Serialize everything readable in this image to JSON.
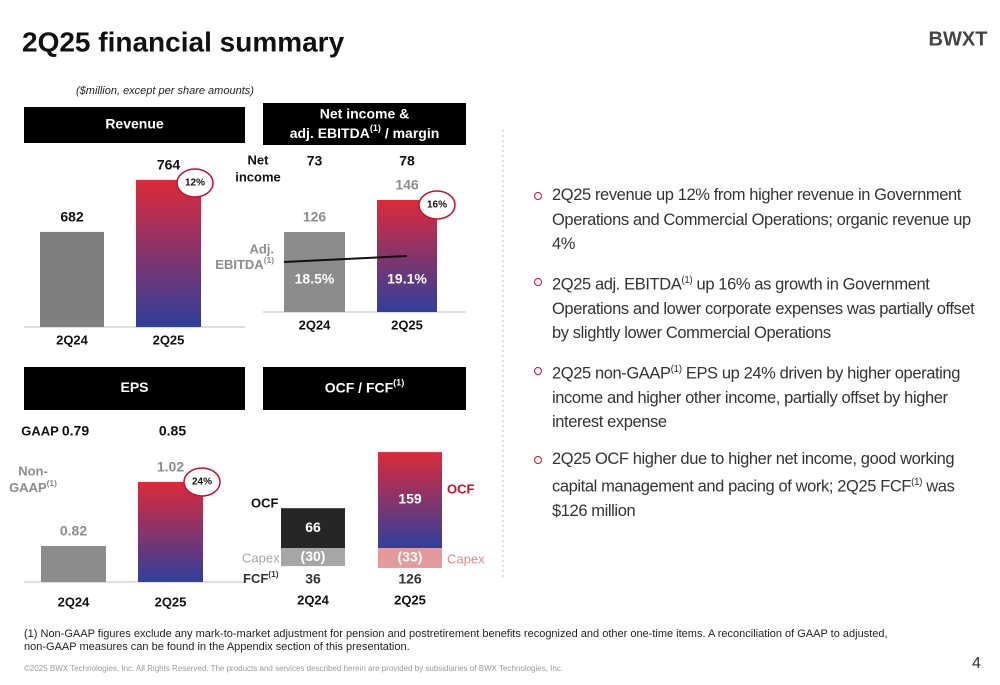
{
  "title": "2Q25 financial summary",
  "logo": "BWXT",
  "units_note": "($million, except per share amounts)",
  "chart_data": [
    {
      "type": "bar",
      "title": "Revenue",
      "categories": [
        "2Q24",
        "2Q25"
      ],
      "values": [
        682,
        764
      ],
      "colors": [
        "#7f7f7f",
        [
          "#dc2a3a",
          "#2f3f9c"
        ]
      ],
      "ylim": [
        532,
        827
      ],
      "growth": "12%"
    },
    {
      "type": "bar",
      "title": "Net income &",
      "subtitle": [
        [
          "adj. EBITDA",
          {
            "sup": "(1)"
          },
          " / margin"
        ]
      ],
      "categories": [
        "2Q24",
        "2Q25"
      ],
      "values": [
        126,
        146
      ],
      "colors": [
        "#8c8c8c",
        [
          "#dc2a3a",
          "#2f3f9c"
        ]
      ],
      "ylim": [
        76,
        183.5
      ],
      "growth": "16%",
      "net_income_label": [
        "Net",
        "income"
      ],
      "net_income": [
        73,
        78
      ],
      "ebitda_label": [
        "Adj.",
        [
          "EBITDA",
          {
            "sup": "(1)"
          }
        ]
      ],
      "margin": [
        18.5,
        19.1
      ],
      "margin_labels": [
        "18.5%",
        "19.1%"
      ],
      "y2lim": [
        13.5,
        30.7
      ],
      "line_color": "#111111"
    },
    {
      "type": "bar",
      "title": "EPS",
      "categories": [
        "2Q24",
        "2Q25"
      ],
      "values": [
        0.82,
        1.02
      ],
      "colors": [
        "#8c8c8c",
        [
          "#dc2a3a",
          "#2f3f9c"
        ]
      ],
      "ylim": [
        0.7075,
        1.151
      ],
      "growth": "24%",
      "gaap_label": "GAAP",
      "gaap": [
        0.79,
        0.85
      ],
      "non_gaap_label": [
        "Non-",
        [
          "GAAP",
          {
            "sup": "(1)"
          }
        ]
      ]
    },
    {
      "type": "bar",
      "title": [
        [
          "OCF / FCF",
          {
            "sup": "(1)"
          }
        ]
      ],
      "categories": [
        "2Q24",
        "2Q25"
      ],
      "ylim": [
        -53,
        179
      ],
      "series": [
        {
          "name": "OCF",
          "values": [
            66,
            159
          ],
          "colors": [
            "#262626",
            [
              "#dc2a3a",
              "#2f3f9c"
            ]
          ],
          "label_colors": [
            "#111111",
            "#c8102e"
          ]
        },
        {
          "name": "Capex",
          "values": [
            -30,
            -33
          ],
          "value_labels": [
            "(30)",
            "(33)"
          ],
          "colors": [
            "#a6a6a6",
            "#e39a9a"
          ],
          "label_colors": [
            "#a6a6a6",
            "#e38a8a"
          ]
        }
      ],
      "fcf_label": [
        [
          "FCF",
          {
            "sup": "(1)"
          }
        ]
      ],
      "fcf": [
        36,
        126
      ]
    }
  ],
  "bullets": [
    [
      "2Q25 revenue up 12% from higher revenue in Government Operations and Commercial Operations; organic revenue up 4%"
    ],
    [
      "2Q25 adj. EBITDA",
      {
        "sup": "(1)"
      },
      " up 16% as growth in Government Operations and lower corporate expenses was partially offset by slightly lower Commercial Operations"
    ],
    [
      "2Q25 non-GAAP",
      {
        "sup": "(1)"
      },
      " EPS up 24% driven by higher operating income and higher other income, partially offset by higher interest expense"
    ],
    [
      "2Q25 OCF higher due to higher net income, good working capital management and pacing of work; 2Q25 FCF",
      {
        "sup": "(1)"
      },
      " was $126 million"
    ]
  ],
  "footnote": [
    "(1) Non-GAAP figures exclude any mark-to-market adjustment for pension and postretirement benefits recognized and other one-time items.  A reconciliation of GAAP to adjusted,",
    "non-GAAP measures can be found in the Appendix section of this presentation."
  ],
  "copyright": "©2025 BWX Technologies, Inc. All Rights Reserved.   The products and services described herein are provided by subsidiaries of BWX Technologies, Inc.",
  "page_number": 4
}
